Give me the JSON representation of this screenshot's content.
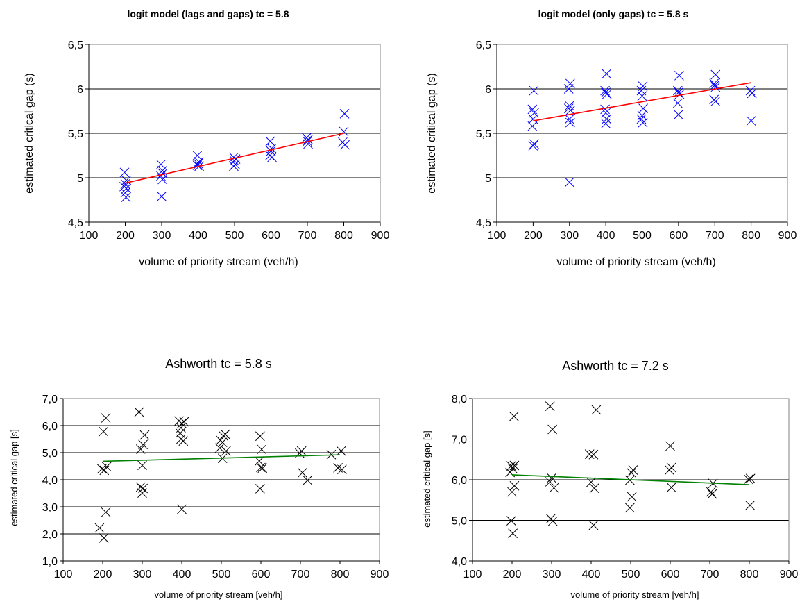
{
  "chart_data": [
    {
      "type": "scatter",
      "title": "logit model (lags and gaps)   tc = 5.8",
      "xlabel": "volume of priority stream (veh/h)",
      "ylabel": "estimated critical gap  (s)",
      "xlim": [
        100,
        900
      ],
      "ylim": [
        4.5,
        6.5
      ],
      "x_ticks": [
        "100",
        "200",
        "300",
        "400",
        "500",
        "600",
        "700",
        "800",
        "900"
      ],
      "y_ticks": [
        "4,5",
        "5",
        "5,5",
        "6",
        "6,5"
      ],
      "y_ticklabel_values": [
        4.5,
        5.0,
        5.5,
        6.0,
        6.5
      ],
      "grid": "horizontal",
      "marker_color": "#0000ff",
      "line_color": "#ff0000",
      "series": [
        {
          "points": [
            [
              198,
              5.06
            ],
            [
              203,
              4.97
            ],
            [
              200,
              4.93
            ],
            [
              197,
              4.9
            ],
            [
              203,
              4.88
            ],
            [
              200,
              4.83
            ],
            [
              202,
              4.78
            ],
            [
              298,
              5.15
            ],
            [
              302,
              5.08
            ],
            [
              303,
              5.05
            ],
            [
              298,
              5.02
            ],
            [
              302,
              4.98
            ],
            [
              300,
              4.79
            ],
            [
              398,
              5.25
            ],
            [
              402,
              5.18
            ],
            [
              400,
              5.16
            ],
            [
              398,
              5.14
            ],
            [
              403,
              5.13
            ],
            [
              498,
              5.23
            ],
            [
              503,
              5.21
            ],
            [
              500,
              5.19
            ],
            [
              502,
              5.15
            ],
            [
              498,
              5.13
            ],
            [
              598,
              5.41
            ],
            [
              602,
              5.33
            ],
            [
              600,
              5.3
            ],
            [
              597,
              5.25
            ],
            [
              603,
              5.23
            ],
            [
              698,
              5.45
            ],
            [
              702,
              5.43
            ],
            [
              700,
              5.41
            ],
            [
              702,
              5.38
            ],
            [
              802,
              5.72
            ],
            [
              800,
              5.52
            ],
            [
              797,
              5.4
            ],
            [
              803,
              5.37
            ]
          ]
        }
      ],
      "trend": {
        "x": [
          200,
          800
        ],
        "y": [
          4.94,
          5.5
        ]
      }
    },
    {
      "type": "scatter",
      "title": "logit model (only gaps)  tc = 5.8 s",
      "xlabel": "volume of priority stream (veh/h)",
      "ylabel": "estimated critical gap  (s)",
      "xlim": [
        100,
        900
      ],
      "ylim": [
        4.5,
        6.5
      ],
      "x_ticks": [
        "100",
        "200",
        "300",
        "400",
        "500",
        "600",
        "700",
        "800",
        "900"
      ],
      "y_ticks": [
        "4,5",
        "5",
        "5,5",
        "6",
        "6,5"
      ],
      "y_ticklabel_values": [
        4.5,
        5.0,
        5.5,
        6.0,
        6.5
      ],
      "grid": "horizontal",
      "marker_color": "#0000ff",
      "line_color": "#ff0000",
      "series": [
        {
          "points": [
            [
              202,
              5.98
            ],
            [
              198,
              5.77
            ],
            [
              203,
              5.73
            ],
            [
              200,
              5.66
            ],
            [
              198,
              5.58
            ],
            [
              203,
              5.38
            ],
            [
              200,
              5.36
            ],
            [
              302,
              6.06
            ],
            [
              298,
              6.0
            ],
            [
              300,
              5.81
            ],
            [
              298,
              5.78
            ],
            [
              303,
              5.76
            ],
            [
              300,
              5.66
            ],
            [
              302,
              5.62
            ],
            [
              300,
              4.95
            ],
            [
              402,
              6.17
            ],
            [
              398,
              5.98
            ],
            [
              400,
              5.96
            ],
            [
              403,
              5.94
            ],
            [
              398,
              5.77
            ],
            [
              400,
              5.73
            ],
            [
              402,
              5.66
            ],
            [
              400,
              5.61
            ],
            [
              502,
              6.03
            ],
            [
              498,
              5.98
            ],
            [
              500,
              5.92
            ],
            [
              503,
              5.78
            ],
            [
              500,
              5.7
            ],
            [
              498,
              5.66
            ],
            [
              502,
              5.62
            ],
            [
              602,
              6.15
            ],
            [
              598,
              5.98
            ],
            [
              600,
              5.96
            ],
            [
              603,
              5.94
            ],
            [
              598,
              5.84
            ],
            [
              600,
              5.71
            ],
            [
              702,
              6.16
            ],
            [
              698,
              6.06
            ],
            [
              700,
              6.04
            ],
            [
              702,
              6.02
            ],
            [
              698,
              5.88
            ],
            [
              702,
              5.86
            ],
            [
              798,
              5.98
            ],
            [
              802,
              5.95
            ],
            [
              800,
              5.64
            ]
          ]
        }
      ],
      "trend": {
        "x": [
          200,
          800
        ],
        "y": [
          5.64,
          6.07
        ]
      }
    },
    {
      "type": "scatter",
      "title": "Ashworth   tc = 5.8 s",
      "xlabel": "volume of priority stream [veh/h]",
      "ylabel": "estimated critical gap [s]",
      "xlim": [
        100,
        900
      ],
      "ylim": [
        1.0,
        7.0
      ],
      "x_ticks": [
        "100",
        "200",
        "300",
        "400",
        "500",
        "600",
        "700",
        "800",
        "900"
      ],
      "y_ticks": [
        "1,0",
        "2,0",
        "3,0",
        "4,0",
        "5,0",
        "6,0",
        "7,0"
      ],
      "y_ticklabel_values": [
        1.0,
        2.0,
        3.0,
        4.0,
        5.0,
        6.0,
        7.0
      ],
      "grid": "horizontal",
      "marker_color": "#000000",
      "line_color": "#008000",
      "series": [
        {
          "points": [
            [
              208,
              6.28
            ],
            [
              202,
              5.78
            ],
            [
              198,
              4.4
            ],
            [
              204,
              4.35
            ],
            [
              210,
              4.48
            ],
            [
              208,
              2.8
            ],
            [
              192,
              2.22
            ],
            [
              203,
              1.85
            ],
            [
              292,
              6.5
            ],
            [
              306,
              5.65
            ],
            [
              302,
              5.3
            ],
            [
              296,
              5.13
            ],
            [
              300,
              4.53
            ],
            [
              296,
              3.73
            ],
            [
              302,
              3.68
            ],
            [
              300,
              3.51
            ],
            [
              393,
              6.17
            ],
            [
              406,
              6.14
            ],
            [
              400,
              6.08
            ],
            [
              398,
              5.92
            ],
            [
              396,
              5.72
            ],
            [
              398,
              5.5
            ],
            [
              404,
              5.43
            ],
            [
              400,
              2.91
            ],
            [
              510,
              5.68
            ],
            [
              505,
              5.62
            ],
            [
              498,
              5.46
            ],
            [
              503,
              5.38
            ],
            [
              496,
              5.17
            ],
            [
              512,
              5.06
            ],
            [
              503,
              4.79
            ],
            [
              598,
              5.61
            ],
            [
              602,
              5.12
            ],
            [
              596,
              4.69
            ],
            [
              600,
              4.45
            ],
            [
              604,
              4.43
            ],
            [
              598,
              3.67
            ],
            [
              703,
              5.06
            ],
            [
              698,
              4.98
            ],
            [
              705,
              4.26
            ],
            [
              718,
              3.98
            ],
            [
              778,
              4.93
            ],
            [
              803,
              5.06
            ],
            [
              795,
              4.44
            ],
            [
              805,
              4.38
            ]
          ]
        }
      ],
      "trend": {
        "x": [
          200,
          800
        ],
        "y": [
          4.68,
          4.92
        ]
      }
    },
    {
      "type": "scatter",
      "title": "Ashworth  tc = 7.2 s",
      "xlabel": "volume of priority stream [veh/h]",
      "ylabel": "estimated critical gap [s]",
      "xlim": [
        100,
        900
      ],
      "ylim": [
        4.0,
        8.0
      ],
      "x_ticks": [
        "100",
        "200",
        "300",
        "400",
        "500",
        "600",
        "700",
        "800",
        "900"
      ],
      "y_ticks": [
        "4,0",
        "5,0",
        "6,0",
        "7,0",
        "8,0"
      ],
      "y_ticklabel_values": [
        4.0,
        5.0,
        6.0,
        7.0,
        8.0
      ],
      "grid": "horizontal",
      "marker_color": "#000000",
      "line_color": "#008000",
      "series": [
        {
          "points": [
            [
              205,
              7.56
            ],
            [
              198,
              6.34
            ],
            [
              206,
              6.35
            ],
            [
              202,
              6.27
            ],
            [
              195,
              6.18
            ],
            [
              206,
              5.85
            ],
            [
              200,
              5.7
            ],
            [
              198,
              4.99
            ],
            [
              202,
              4.68
            ],
            [
              296,
              7.81
            ],
            [
              302,
              7.24
            ],
            [
              300,
              6.04
            ],
            [
              296,
              5.95
            ],
            [
              306,
              5.8
            ],
            [
              298,
              5.04
            ],
            [
              303,
              4.98
            ],
            [
              413,
              7.72
            ],
            [
              396,
              6.63
            ],
            [
              406,
              6.62
            ],
            [
              400,
              5.94
            ],
            [
              408,
              5.79
            ],
            [
              406,
              4.88
            ],
            [
              506,
              6.24
            ],
            [
              502,
              6.17
            ],
            [
              498,
              5.99
            ],
            [
              503,
              5.58
            ],
            [
              498,
              5.31
            ],
            [
              600,
              6.83
            ],
            [
              603,
              6.3
            ],
            [
              598,
              6.24
            ],
            [
              603,
              5.81
            ],
            [
              708,
              5.91
            ],
            [
              703,
              5.7
            ],
            [
              706,
              5.65
            ],
            [
              798,
              6.01
            ],
            [
              803,
              6.03
            ],
            [
              802,
              5.37
            ]
          ]
        }
      ],
      "trend": {
        "x": [
          200,
          800
        ],
        "y": [
          6.12,
          5.88
        ]
      }
    }
  ]
}
